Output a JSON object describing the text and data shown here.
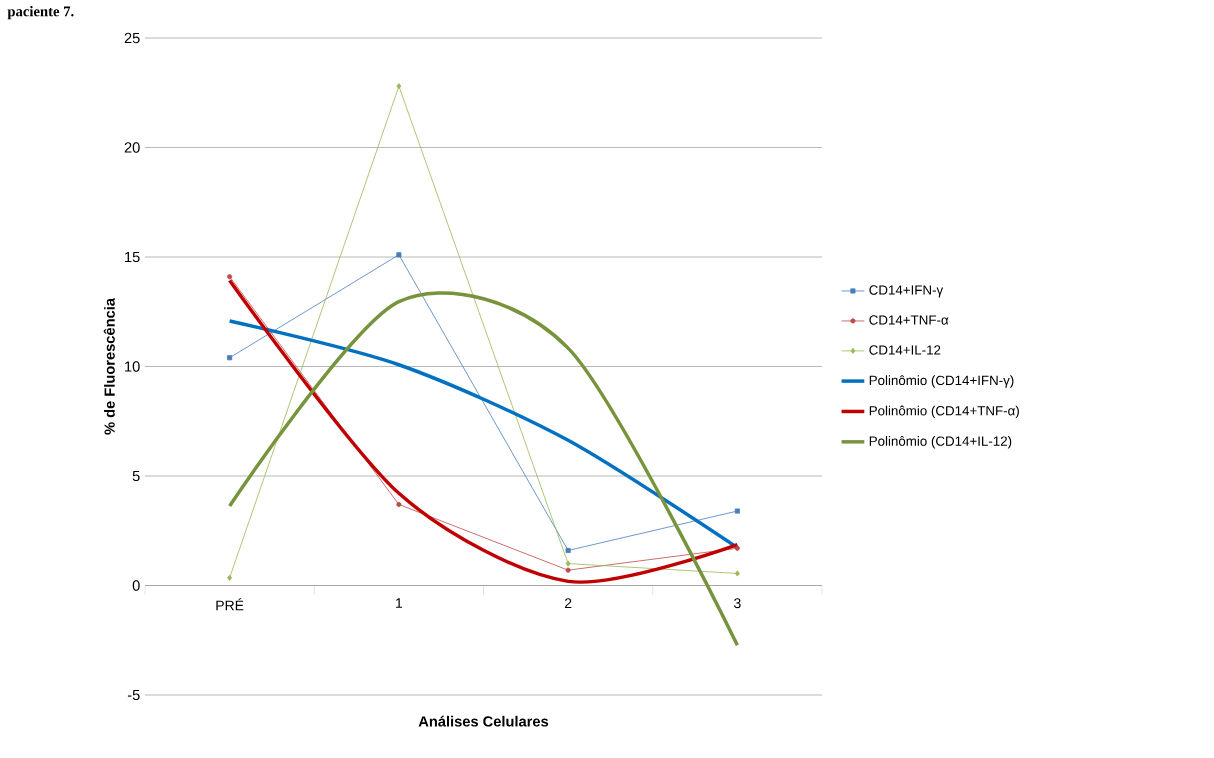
{
  "chart_data": {
    "type": "line",
    "xlabel": "Análises Celulares",
    "ylabel": "% de Fluorescência",
    "annotations": [
      "paciente 7."
    ],
    "categories": [
      "PRÉ",
      "1",
      "2",
      "3"
    ],
    "ylim": [
      -5,
      25
    ],
    "yticks": [
      -5,
      0,
      5,
      10,
      15,
      20,
      25
    ],
    "grid": "y",
    "legend": "right",
    "series": [
      {
        "name": "CD14+IFN-γ",
        "color": "#4a7ebb",
        "marker": "square",
        "values": [
          10.4,
          15.1,
          1.6,
          3.4
        ]
      },
      {
        "name": "CD14+TNF-α",
        "color": "#be4b48",
        "marker": "circle",
        "values": [
          14.1,
          3.7,
          0.7,
          1.7
        ]
      },
      {
        "name": "CD14+IL-12",
        "color": "#98b954",
        "marker": "diamond",
        "values": [
          0.35,
          22.8,
          1.0,
          0.55
        ]
      },
      {
        "name": "Polinômio (CD14+IFN-γ)",
        "color": "#0070c0",
        "marker": "none",
        "values": [
          12.08,
          10.08,
          6.63,
          1.73
        ]
      },
      {
        "name": "Polinômio (CD14+TNF-α)",
        "color": "#c00000",
        "marker": "none",
        "values": [
          13.93,
          4.21,
          0.19,
          1.87
        ]
      },
      {
        "name": "Polinômio (CD14+IL-12)",
        "color": "#77933c",
        "marker": "none",
        "values": [
          3.63,
          12.96,
          10.84,
          -2.73
        ]
      }
    ]
  }
}
